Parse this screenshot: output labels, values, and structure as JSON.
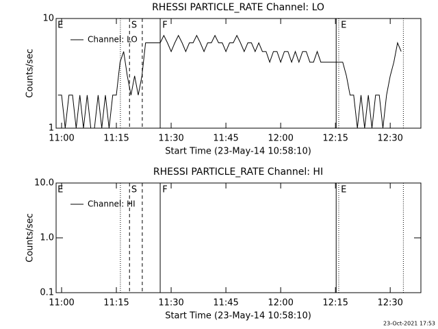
{
  "chart_data": [
    {
      "type": "line",
      "title": "RHESSI PARTICLE_RATE Channel: LO",
      "xlabel": "Start Time (23-May-14 10:58:10)",
      "ylabel": "Counts/sec",
      "log_y": true,
      "xlim": [
        -1.5,
        98.4
      ],
      "ylim": [
        1,
        10
      ],
      "xticks": [
        {
          "value": 0,
          "label": "11:00"
        },
        {
          "value": 15,
          "label": "11:15"
        },
        {
          "value": 30,
          "label": "11:30"
        },
        {
          "value": 45,
          "label": "11:45"
        },
        {
          "value": 60,
          "label": "12:00"
        },
        {
          "value": 75,
          "label": "12:15"
        },
        {
          "value": 90,
          "label": "12:30"
        }
      ],
      "yticks": [
        10,
        1
      ],
      "x": [
        -1,
        0,
        1,
        2,
        3,
        4,
        5,
        6,
        7,
        8,
        9,
        10,
        11,
        12,
        13,
        14,
        15,
        16,
        17,
        18,
        19,
        20,
        21,
        22,
        23,
        24,
        25,
        26,
        27,
        28,
        29,
        30,
        31,
        32,
        33,
        34,
        35,
        36,
        37,
        38,
        39,
        40,
        41,
        42,
        43,
        44,
        45,
        46,
        47,
        48,
        49,
        50,
        51,
        52,
        53,
        54,
        55,
        56,
        57,
        58,
        59,
        60,
        61,
        62,
        63,
        64,
        65,
        66,
        67,
        68,
        69,
        70,
        71,
        72,
        73,
        74,
        75,
        76,
        77,
        78,
        79,
        80,
        81,
        82,
        83,
        84,
        85,
        86,
        87,
        88,
        89,
        90,
        91,
        92,
        93
      ],
      "series": [
        {
          "name": "Channel: LO",
          "color": "#000000",
          "values": [
            2,
            2,
            1,
            2,
            2,
            1,
            2,
            1,
            2,
            1,
            1,
            2,
            1,
            2,
            1,
            2,
            2,
            4,
            5,
            3,
            2,
            3,
            2,
            3,
            6,
            6,
            6,
            6,
            6,
            7,
            6,
            5,
            6,
            7,
            6,
            5,
            6,
            6,
            7,
            6,
            5,
            6,
            6,
            7,
            6,
            6,
            5,
            6,
            6,
            7,
            6,
            5,
            6,
            6,
            5,
            6,
            5,
            5,
            4,
            5,
            5,
            4,
            5,
            5,
            4,
            5,
            4,
            5,
            5,
            4,
            4,
            5,
            4,
            4,
            4,
            4,
            4,
            4,
            4,
            3,
            2,
            2,
            1,
            2,
            1,
            2,
            1,
            2,
            2,
            1,
            2,
            3,
            4,
            6,
            5
          ]
        }
      ],
      "markers": [
        {
          "x": 16.1,
          "style": "dotted"
        },
        {
          "x": 18.6,
          "style": "dashed"
        },
        {
          "x": 22.1,
          "style": "dashed"
        },
        {
          "x": 27.0,
          "style": "solid"
        },
        {
          "x": 75.2,
          "style": "solid"
        },
        {
          "x": 75.9,
          "style": "dotted"
        },
        {
          "x": 93.6,
          "style": "dotted"
        }
      ],
      "marker_labels": [
        {
          "x": -1.1,
          "label": "E"
        },
        {
          "x": 19.1,
          "label": "S"
        },
        {
          "x": 27.6,
          "label": "F"
        },
        {
          "x": 76.5,
          "label": "E"
        }
      ]
    },
    {
      "type": "line",
      "title": "RHESSI PARTICLE_RATE Channel: HI",
      "xlabel": "Start Time (23-May-14 10:58:10)",
      "ylabel": "Counts/sec",
      "log_y": true,
      "xlim": [
        -1.5,
        98.4
      ],
      "ylim": [
        0.1,
        10
      ],
      "xticks": [
        {
          "value": 0,
          "label": "11:00"
        },
        {
          "value": 15,
          "label": "11:15"
        },
        {
          "value": 30,
          "label": "11:30"
        },
        {
          "value": 45,
          "label": "11:45"
        },
        {
          "value": 60,
          "label": "12:00"
        },
        {
          "value": 75,
          "label": "12:15"
        },
        {
          "value": 90,
          "label": "12:30"
        }
      ],
      "yticks": [
        {
          "value": 10,
          "label": "10.0"
        },
        {
          "value": 1,
          "label": "1.0"
        },
        {
          "value": 0.1,
          "label": "0.1"
        }
      ],
      "x": [],
      "series": [
        {
          "name": "Channel: HI",
          "color": "#000000",
          "values": []
        }
      ],
      "markers": [
        {
          "x": 16.1,
          "style": "dotted"
        },
        {
          "x": 18.6,
          "style": "dashed"
        },
        {
          "x": 22.1,
          "style": "dashed"
        },
        {
          "x": 27.0,
          "style": "solid"
        },
        {
          "x": 75.2,
          "style": "solid"
        },
        {
          "x": 75.9,
          "style": "dotted"
        },
        {
          "x": 93.6,
          "style": "dotted"
        }
      ],
      "marker_labels": [
        {
          "x": -1.1,
          "label": "E"
        },
        {
          "x": 19.1,
          "label": "S"
        },
        {
          "x": 27.6,
          "label": "F"
        },
        {
          "x": 76.5,
          "label": "E"
        }
      ]
    }
  ],
  "footer": "23-Oct-2021 17:53"
}
